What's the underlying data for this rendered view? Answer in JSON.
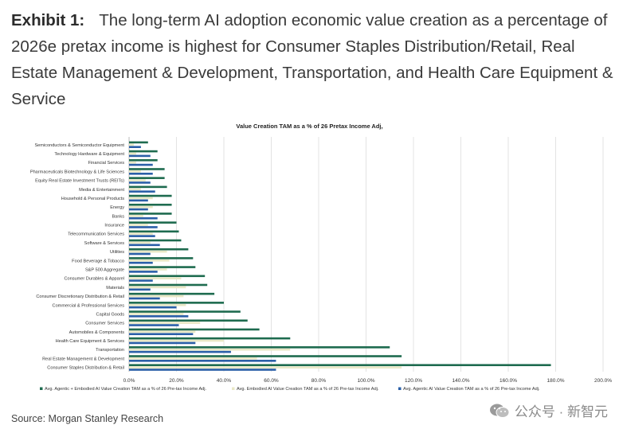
{
  "header": {
    "label": "Exhibit 1:",
    "text": "The long-term AI adoption economic value creation as a percentage of 2026e pretax income is highest for Consumer Staples Distribution/Retail, Real Estate Management & Development, Transportation, and Health Care Equipment & Service"
  },
  "source": "Source: Morgan Stanley Research",
  "watermark": {
    "text": "公众号 · 新智元",
    "icon": "wechat-icon"
  },
  "colors": {
    "agentic_embodied": "#1e6b4f",
    "embodied": "#e9e8c6",
    "agentic": "#2a5fa8"
  },
  "chart_data": {
    "type": "bar",
    "orientation": "horizontal",
    "title": "Value Creation TAM as a % of 26 Pretax Income Adj,",
    "categories": [
      "Semiconductors & Semiconductor Equipment",
      "Technology Hardware & Equipment",
      "Financial Services",
      "Pharmaceuticals Biotechnology & Life Sciences",
      "Equity Real Estate Investment Trusts (REITs)",
      "Media & Entertainment",
      "Household & Personal Products",
      "Energy",
      "Banks",
      "Insurance",
      "Telecommunication Services",
      "Software & Services",
      "Utilities",
      "Food Beverage & Tobacco",
      "S&P 500 Aggregate",
      "Consumer Durables & Apparel",
      "Materials",
      "Consumer Discretionary Distribution & Retail",
      "Commercial & Professional Services",
      "Capital Goods",
      "Consumer Services",
      "Automobiles & Components",
      "Health Care Equipment & Services",
      "Transportation",
      "Real Estate Management & Development",
      "Consumer Staples Distribution & Retail"
    ],
    "series": [
      {
        "name": "Avg. Agentic + Embodied AI Value Creation TAM as a % of 26 Pre-tax Income Adj.",
        "values": [
          8,
          12,
          12,
          15,
          15,
          16,
          18,
          18,
          18,
          20,
          21,
          22,
          25,
          27,
          28,
          32,
          33,
          36,
          40,
          47,
          50,
          55,
          68,
          110,
          115,
          178
        ]
      },
      {
        "name": "Avg. Embodied AI Value Creation TAM as a % of 26 Pre-tax Income Adj.",
        "values": [
          2,
          3,
          3,
          5,
          7,
          5,
          10,
          10,
          6,
          8,
          10,
          9,
          16,
          17,
          16,
          22,
          24,
          23,
          24,
          23,
          30,
          28,
          40,
          68,
          54,
          115
        ]
      },
      {
        "name": "Avg. Agentic AI Value Creation TAM as a % of 26 Pre-tax Income Adj.",
        "values": [
          5,
          9,
          10,
          10,
          9,
          11,
          8,
          8,
          12,
          12,
          11,
          13,
          9,
          10,
          12,
          10,
          9,
          13,
          20,
          25,
          21,
          27,
          28,
          43,
          62,
          62
        ]
      }
    ],
    "xlim": [
      0,
      200
    ],
    "xticks": [
      "0.0%",
      "20.0%",
      "40.0%",
      "60.0%",
      "80.0%",
      "100.0%",
      "120.0%",
      "140.0%",
      "160.0%",
      "180.0%",
      "200.0%"
    ],
    "grid": true,
    "legend": "bottom"
  }
}
